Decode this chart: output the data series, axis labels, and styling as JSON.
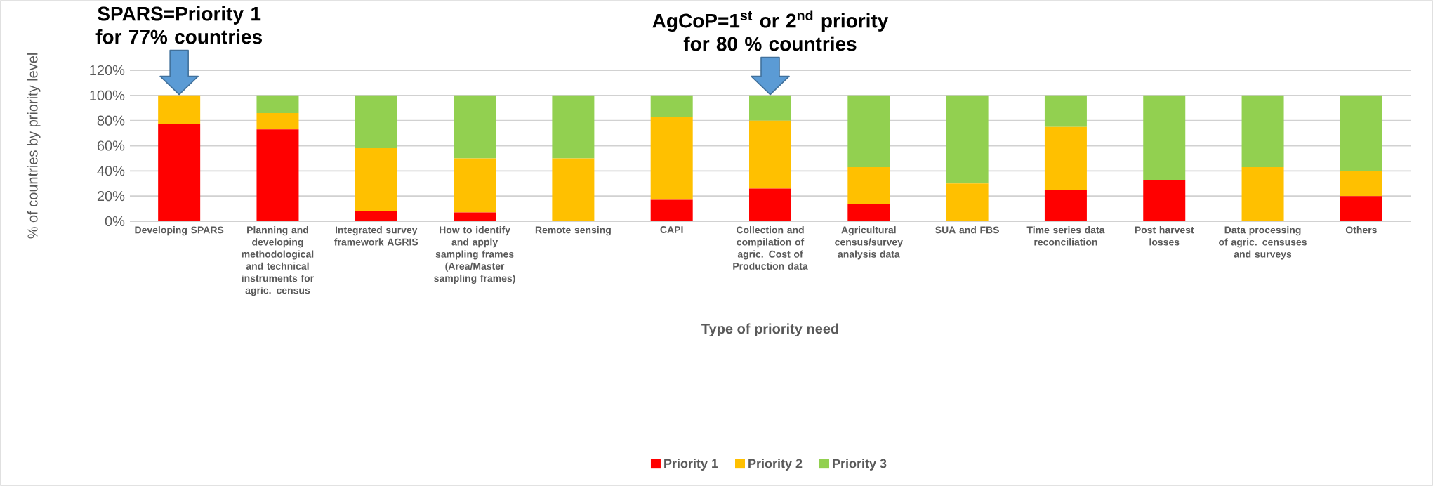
{
  "chart_data": {
    "type": "bar",
    "stacked": true,
    "xlabel": "Type of priority need",
    "ylabel": "% of countries by priority level",
    "categories": [
      "Developing SPARS",
      "Planning and developing methodological and technical instruments for agric. census",
      "Integrated survey framework AGRIS",
      "How to identify and apply sampling frames (Area/Master sampling frames)",
      "Remote sensing",
      "CAPI",
      "Collection and compilation of agric. Cost of Production data",
      "Agricultural census/survey analysis data",
      "SUA and FBS",
      "Time series data reconciliation",
      "Post harvest losses",
      "Data processing of agric. censuses and surveys",
      "Others"
    ],
    "series": [
      {
        "name": "Priority 1",
        "color": "#ff0000",
        "values": [
          77,
          73,
          8,
          7,
          0,
          17,
          26,
          14,
          0,
          25,
          33,
          0,
          20
        ]
      },
      {
        "name": "Priority 2",
        "color": "#ffc000",
        "values": [
          23,
          13,
          50,
          43,
          50,
          66,
          54,
          29,
          30,
          50,
          0,
          43,
          20
        ]
      },
      {
        "name": "Priority 3",
        "color": "#92d050",
        "values": [
          0,
          14,
          42,
          50,
          50,
          17,
          20,
          57,
          70,
          25,
          67,
          57,
          60
        ]
      }
    ],
    "ylim": [
      0,
      120
    ],
    "yticks": [
      {
        "value": 0,
        "label": "0%"
      },
      {
        "value": 20,
        "label": "20%"
      },
      {
        "value": 40,
        "label": "40%"
      },
      {
        "value": 60,
        "label": "60%"
      },
      {
        "value": 80,
        "label": "80%"
      },
      {
        "value": 100,
        "label": "100%"
      },
      {
        "value": 120,
        "label": "120%"
      }
    ],
    "grid": "y",
    "legend": "bottom",
    "annotations": [
      {
        "text": "SPARS=Priority 1 for 77% countries",
        "x": "Developing SPARS",
        "y": 100
      },
      {
        "text": "AgCoP=1$^{st}$ or 2$^{nd}$ priority for 80 % countries",
        "x": "Collection and compilation of agric. Cost of Production data",
        "y": 100
      }
    ]
  }
}
